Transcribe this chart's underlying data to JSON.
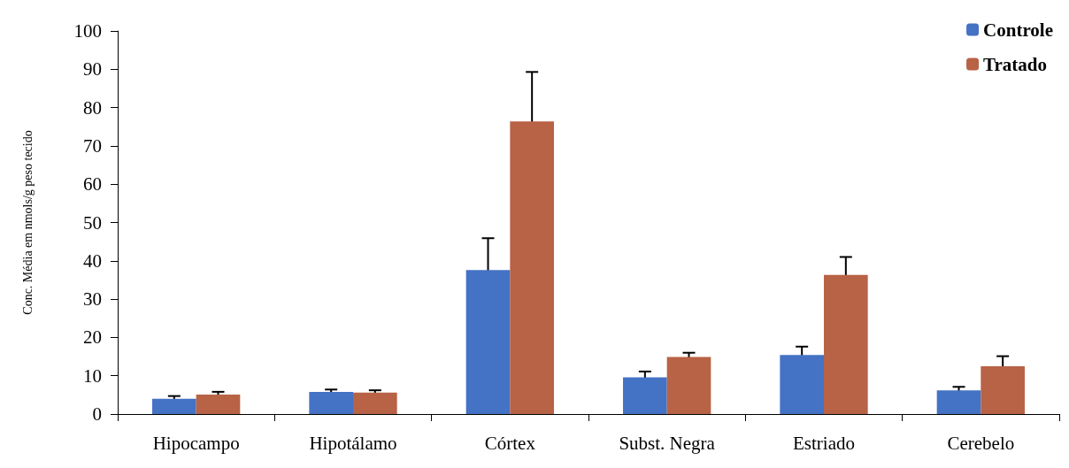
{
  "chart_data": {
    "type": "bar",
    "ylabel": "Conc. Média em nmols/g peso tecido",
    "categories": [
      "Hipocampo",
      "Hipotálamo",
      "Córtex",
      "Subst. Negra",
      "Estriado",
      "Cerebelo"
    ],
    "series": [
      {
        "name": "Controle",
        "color": "#4472c4",
        "values": [
          4.0,
          5.8,
          37.6,
          9.6,
          15.4,
          6.2
        ],
        "errors": [
          0.7,
          0.6,
          8.3,
          1.5,
          2.2,
          0.9
        ]
      },
      {
        "name": "Tratado",
        "color": "#b86246",
        "values": [
          5.1,
          5.6,
          76.4,
          14.9,
          36.3,
          12.5
        ],
        "errors": [
          0.7,
          0.6,
          12.9,
          1.1,
          4.7,
          2.6
        ]
      }
    ],
    "ylim": [
      0,
      100
    ],
    "yticks": [
      0,
      10,
      20,
      30,
      40,
      50,
      60,
      70,
      80,
      90,
      100
    ],
    "grid": false,
    "legend": "top right"
  }
}
